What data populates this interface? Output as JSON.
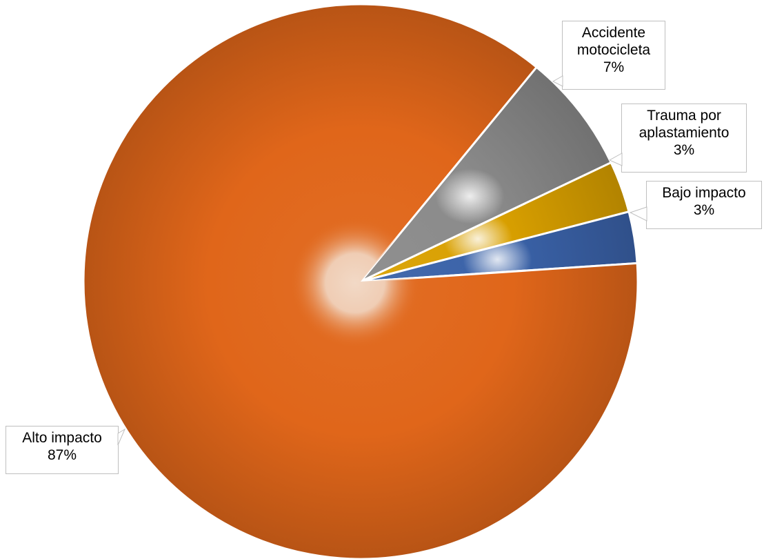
{
  "chart_data": {
    "type": "pie",
    "categories": [
      "Alto impacto",
      "Accidente motocicleta",
      "Trauma por aplastamiento",
      "Bajo impacto"
    ],
    "values": [
      87,
      7,
      3,
      3
    ],
    "value_labels": [
      "87%",
      "7%",
      "3%",
      "3%"
    ],
    "category_label_lines": [
      [
        "Alto impacto"
      ],
      [
        "Accidente",
        "motocicleta"
      ],
      [
        "Trauma por",
        "aplastamiento"
      ],
      [
        "Bajo impacto"
      ]
    ],
    "colors": [
      "#E0661A",
      "#8A8A8A",
      "#D9A000",
      "#3A62A8"
    ],
    "title": "",
    "legend": "none",
    "data_labels": "callouts"
  }
}
